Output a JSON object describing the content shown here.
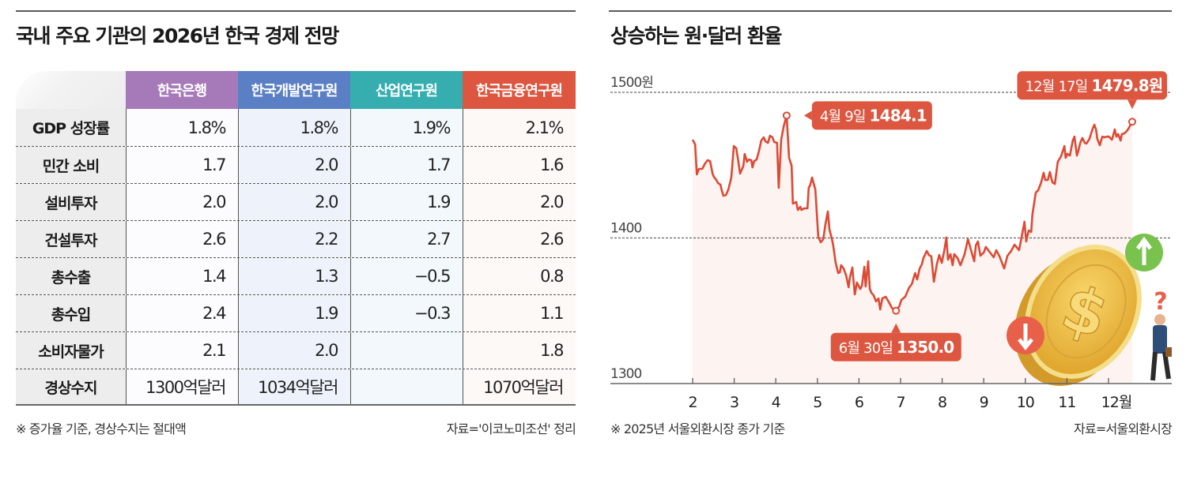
{
  "left_panel": {
    "title": "국내 주요 기관의 2026년 한국 경제 전망",
    "columns": [
      {
        "label": "한국은행",
        "color": "#a679b8"
      },
      {
        "label": "한국개발연구원",
        "color": "#5b7fc4"
      },
      {
        "label": "산업연구원",
        "color": "#36aeb0"
      },
      {
        "label": "한국금융연구원",
        "color": "#dc5640"
      }
    ],
    "rows": [
      {
        "label": "GDP 성장률",
        "values": [
          "1.8%",
          "1.8%",
          "1.9%",
          "2.1%"
        ]
      },
      {
        "label": "민간 소비",
        "values": [
          "1.7",
          "2.0",
          "1.7",
          "1.6"
        ]
      },
      {
        "label": "설비투자",
        "values": [
          "2.0",
          "2.0",
          "1.9",
          "2.0"
        ]
      },
      {
        "label": "건설투자",
        "values": [
          "2.6",
          "2.2",
          "2.7",
          "2.6"
        ]
      },
      {
        "label": "총수출",
        "values": [
          "1.4",
          "1.3",
          "−0.5",
          "0.8"
        ]
      },
      {
        "label": "총수입",
        "values": [
          "2.4",
          "1.9",
          "−0.3",
          "1.1"
        ]
      },
      {
        "label": "소비자물가",
        "values": [
          "2.1",
          "2.0",
          "",
          "1.8"
        ]
      },
      {
        "label": "경상수지",
        "values": [
          "1300억달러",
          "1034억달러",
          "",
          "1070억달러"
        ]
      }
    ],
    "note": "※ 증가율 기준, 경상수지는 절대액",
    "source": "자료='이코노미조선' 정리"
  },
  "right_panel": {
    "note": "※ 2025년 서울외환시장 종가 기준",
    "source": "자료=서울외환시장"
  },
  "chart_data": {
    "type": "line",
    "title": "상승하는 원·달러 환율",
    "xlabel": "",
    "ylabel": "",
    "y_tick_labels": [
      "1300",
      "1400",
      "1500원"
    ],
    "y_ticks": [
      1300,
      1400,
      1500
    ],
    "ylim": [
      1300,
      1500
    ],
    "x_ticks": [
      2,
      3,
      4,
      5,
      6,
      7,
      8,
      9,
      10,
      11,
      12
    ],
    "x_tick_labels": [
      "2",
      "3",
      "4",
      "5",
      "6",
      "7",
      "8",
      "9",
      "10",
      "11",
      "12월"
    ],
    "xlim": [
      1.62,
      13.55
    ],
    "grid": "dashed at 1400 and 1500",
    "line_color": "#dc4a35",
    "fill_color": "#fdf3f0",
    "series": [
      {
        "name": "원·달러 환율",
        "x": [
          2.0,
          2.06,
          2.1,
          2.15,
          2.23,
          2.3,
          2.36,
          2.42,
          2.48,
          2.51,
          2.57,
          2.61,
          2.67,
          2.7,
          2.74,
          2.8,
          2.86,
          2.93,
          2.99,
          3.05,
          3.1,
          3.14,
          3.22,
          3.25,
          3.31,
          3.35,
          3.41,
          3.44,
          3.48,
          3.54,
          3.6,
          3.65,
          3.71,
          3.75,
          3.81,
          3.86,
          3.92,
          3.96,
          4.03,
          4.07,
          4.13,
          4.19,
          4.26,
          4.32,
          4.38,
          4.41,
          4.49,
          4.53,
          4.59,
          4.62,
          4.68,
          4.76,
          4.79,
          4.83,
          4.87,
          4.95,
          5.02,
          5.08,
          5.14,
          5.19,
          5.25,
          5.29,
          5.35,
          5.38,
          5.44,
          5.5,
          5.54,
          5.57,
          5.63,
          5.69,
          5.75,
          5.78,
          5.84,
          5.9,
          5.95,
          6.03,
          6.07,
          6.13,
          6.16,
          6.22,
          6.26,
          6.3,
          6.35,
          6.41,
          6.47,
          6.51,
          6.56,
          6.64,
          6.71,
          6.79,
          6.89,
          6.97,
          7.02,
          7.11,
          7.21,
          7.27,
          7.35,
          7.4,
          7.46,
          7.51,
          7.55,
          7.63,
          7.68,
          7.74,
          7.8,
          7.87,
          7.93,
          7.99,
          8.05,
          8.1,
          8.14,
          8.2,
          8.25,
          8.29,
          8.37,
          8.44,
          8.54,
          8.62,
          8.69,
          8.77,
          8.81,
          8.86,
          8.92,
          9.0,
          9.05,
          9.15,
          9.24,
          9.3,
          9.38,
          9.49,
          9.57,
          9.66,
          9.74,
          9.85,
          9.91,
          9.98,
          10.02,
          10.08,
          10.14,
          10.17,
          10.25,
          10.31,
          10.38,
          10.44,
          10.48,
          10.54,
          10.59,
          10.65,
          10.71,
          10.78,
          10.86,
          10.94,
          10.97,
          11.01,
          11.07,
          11.14,
          11.18,
          11.24,
          11.28,
          11.32,
          11.37,
          11.43,
          11.47,
          11.54,
          11.62,
          11.66,
          11.7,
          11.73,
          11.79,
          11.85,
          11.9,
          11.96,
          12.01,
          12.08,
          12.11,
          12.15,
          12.19,
          12.23,
          12.29,
          12.32,
          12.38,
          12.44,
          12.49,
          12.57
        ],
        "values": [
          1467.5,
          1464.2,
          1443.6,
          1447.4,
          1447.4,
          1451.2,
          1453.4,
          1452.8,
          1444.2,
          1442.0,
          1439.8,
          1437.7,
          1436.6,
          1432.8,
          1429.0,
          1429.5,
          1433.3,
          1441.5,
          1463.1,
          1461.5,
          1452.3,
          1444.2,
          1449.6,
          1457.7,
          1452.3,
          1453.9,
          1453.4,
          1448.5,
          1452.8,
          1453.9,
          1460.4,
          1466.9,
          1469.1,
          1466.4,
          1465.3,
          1470.2,
          1469.1,
          1465.9,
          1465.3,
          1434.4,
          1467.5,
          1476.7,
          1484.1,
          1455.0,
          1449.6,
          1423.6,
          1424.7,
          1419.2,
          1421.4,
          1419.2,
          1420.3,
          1420.3,
          1434.4,
          1436.6,
          1441.5,
          1433.3,
          1400.8,
          1397.0,
          1399.2,
          1408.9,
          1418.2,
          1405.7,
          1399.2,
          1394.9,
          1383.0,
          1375.9,
          1376.4,
          1381.3,
          1379.1,
          1374.3,
          1366.1,
          1372.6,
          1379.7,
          1361.2,
          1369.4,
          1365.0,
          1367.2,
          1380.2,
          1366.7,
          1384.0,
          1365.0,
          1362.3,
          1360.7,
          1356.4,
          1358.5,
          1350.9,
          1358.5,
          1359.6,
          1356.4,
          1352.0,
          1350.0,
          1353.1,
          1357.5,
          1359.6,
          1366.1,
          1368.3,
          1375.9,
          1371.5,
          1379.1,
          1381.8,
          1386.2,
          1391.1,
          1388.3,
          1387.3,
          1369.9,
          1381.8,
          1388.3,
          1382.9,
          1391.1,
          1400.3,
          1385.1,
          1388.9,
          1381.3,
          1388.9,
          1386.2,
          1381.3,
          1388.9,
          1399.2,
          1392.1,
          1384.0,
          1394.9,
          1397.6,
          1387.8,
          1390.0,
          1393.8,
          1390.0,
          1386.7,
          1391.6,
          1387.3,
          1379.1,
          1387.8,
          1391.1,
          1395.4,
          1391.6,
          1400.8,
          1411.1,
          1397.6,
          1405.1,
          1404.1,
          1416.0,
          1431.2,
          1432.8,
          1438.2,
          1444.7,
          1439.8,
          1439.8,
          1445.3,
          1438.2,
          1437.1,
          1452.3,
          1456.1,
          1463.1,
          1455.0,
          1457.7,
          1456.6,
          1466.9,
          1469.6,
          1456.6,
          1460.4,
          1465.3,
          1468.6,
          1465.3,
          1464.8,
          1468.0,
          1475.1,
          1477.8,
          1474.5,
          1468.0,
          1463.7,
          1469.6,
          1469.1,
          1469.6,
          1469.6,
          1467.5,
          1470.2,
          1474.5,
          1469.6,
          1471.3,
          1466.9,
          1471.3,
          1471.8,
          1473.4,
          1475.6,
          1479.8
        ]
      }
    ],
    "annotations": [
      {
        "x": 4.26,
        "value": 1484.1,
        "date_text": "4월 9일",
        "value_text": "1484.1",
        "placement": "right"
      },
      {
        "x": 6.89,
        "value": 1350.0,
        "date_text": "6월 30일",
        "value_text": "1350.0",
        "placement": "below"
      },
      {
        "x": 12.57,
        "value": 1479.8,
        "date_text": "12월 17일",
        "value_text": "1479.8원",
        "placement": "above"
      }
    ],
    "illustration": {
      "coin_symbol": "$",
      "down_arrow_color": "#e8604a",
      "up_arrow_color": "#79c24e",
      "question_mark": "?"
    }
  }
}
